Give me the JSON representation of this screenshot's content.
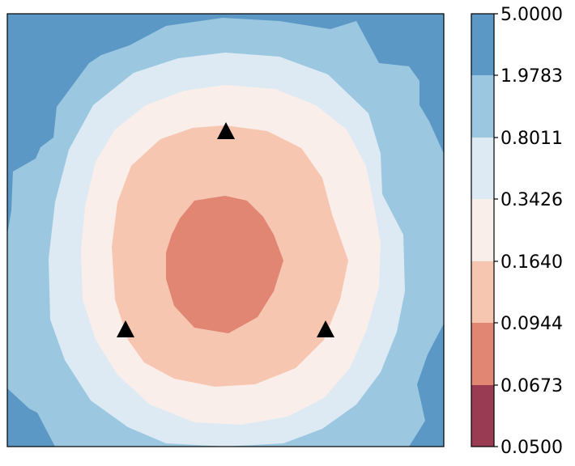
{
  "chart_data": {
    "type": "contour",
    "title": "",
    "xlabel": "",
    "ylabel": "",
    "x_ticks_visible": false,
    "y_ticks_visible": false,
    "colormap": "RdBu",
    "levels": [
      "0.0500",
      "0.0673",
      "0.0944",
      "0.1640",
      "0.3426",
      "0.8011",
      "1.9783",
      "5.0000"
    ],
    "band_colors": [
      "#9a3b54",
      "#e08673",
      "#f7c6b1",
      "#f9eee9",
      "#ddeaf4",
      "#9bc8e0",
      "#5c98c6"
    ],
    "markers": [
      {
        "shape": "triangle",
        "color": "#000000",
        "x": 0.5,
        "y": 0.82
      },
      {
        "shape": "triangle",
        "color": "#000000",
        "x": 0.27,
        "y": 0.27
      },
      {
        "shape": "triangle",
        "color": "#000000",
        "x": 0.73,
        "y": 0.27
      }
    ]
  }
}
